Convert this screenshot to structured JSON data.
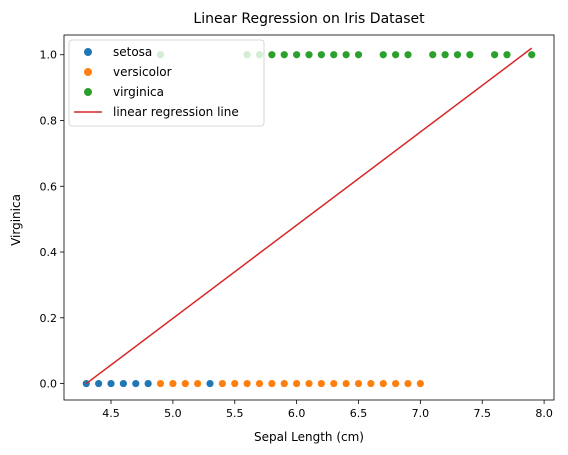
{
  "chart_data": {
    "type": "scatter",
    "title": "Linear Regression on Iris Dataset",
    "xlabel": "Sepal Length (cm)",
    "ylabel": "Virginica",
    "xlim": [
      4.12,
      8.08
    ],
    "ylim": [
      -0.05,
      1.06
    ],
    "xticks": [
      4.5,
      5.0,
      5.5,
      6.0,
      6.5,
      7.0,
      7.5,
      8.0
    ],
    "xtick_labels": [
      "4.5",
      "5.0",
      "5.5",
      "6.0",
      "6.5",
      "7.0",
      "7.5",
      "8.0"
    ],
    "yticks": [
      0.0,
      0.2,
      0.4,
      0.6,
      0.8,
      1.0
    ],
    "ytick_labels": [
      "0.0",
      "0.2",
      "0.4",
      "0.6",
      "0.8",
      "1.0"
    ],
    "legend_position": "top-left",
    "series": [
      {
        "name": "setosa",
        "kind": "scatter",
        "color": "#1f77b4",
        "x": [
          4.3,
          4.4,
          4.5,
          4.6,
          4.7,
          4.8,
          5.3
        ],
        "y": [
          0,
          0,
          0,
          0,
          0,
          0,
          0
        ]
      },
      {
        "name": "versicolor",
        "kind": "scatter",
        "color": "#ff7f0e",
        "x": [
          4.9,
          5.0,
          5.1,
          5.2,
          5.4,
          5.5,
          5.6,
          5.7,
          5.8,
          5.9,
          6.0,
          6.1,
          6.2,
          6.3,
          6.4,
          6.5,
          6.6,
          6.7,
          6.8,
          6.9,
          7.0
        ],
        "y": [
          0,
          0,
          0,
          0,
          0,
          0,
          0,
          0,
          0,
          0,
          0,
          0,
          0,
          0,
          0,
          0,
          0,
          0,
          0,
          0,
          0
        ]
      },
      {
        "name": "virginica",
        "kind": "scatter",
        "color": "#2ca02c",
        "x": [
          4.9,
          5.6,
          5.7,
          5.8,
          5.9,
          6.0,
          6.1,
          6.2,
          6.3,
          6.4,
          6.5,
          6.7,
          6.8,
          6.9,
          7.1,
          7.2,
          7.3,
          7.4,
          7.6,
          7.7,
          7.9
        ],
        "y": [
          1,
          1,
          1,
          1,
          1,
          1,
          1,
          1,
          1,
          1,
          1,
          1,
          1,
          1,
          1,
          1,
          1,
          1,
          1,
          1,
          1
        ]
      },
      {
        "name": "linear regression line",
        "kind": "line",
        "color": "#d62728",
        "x": [
          4.3,
          7.9
        ],
        "y": [
          0.0,
          1.02
        ]
      }
    ]
  }
}
